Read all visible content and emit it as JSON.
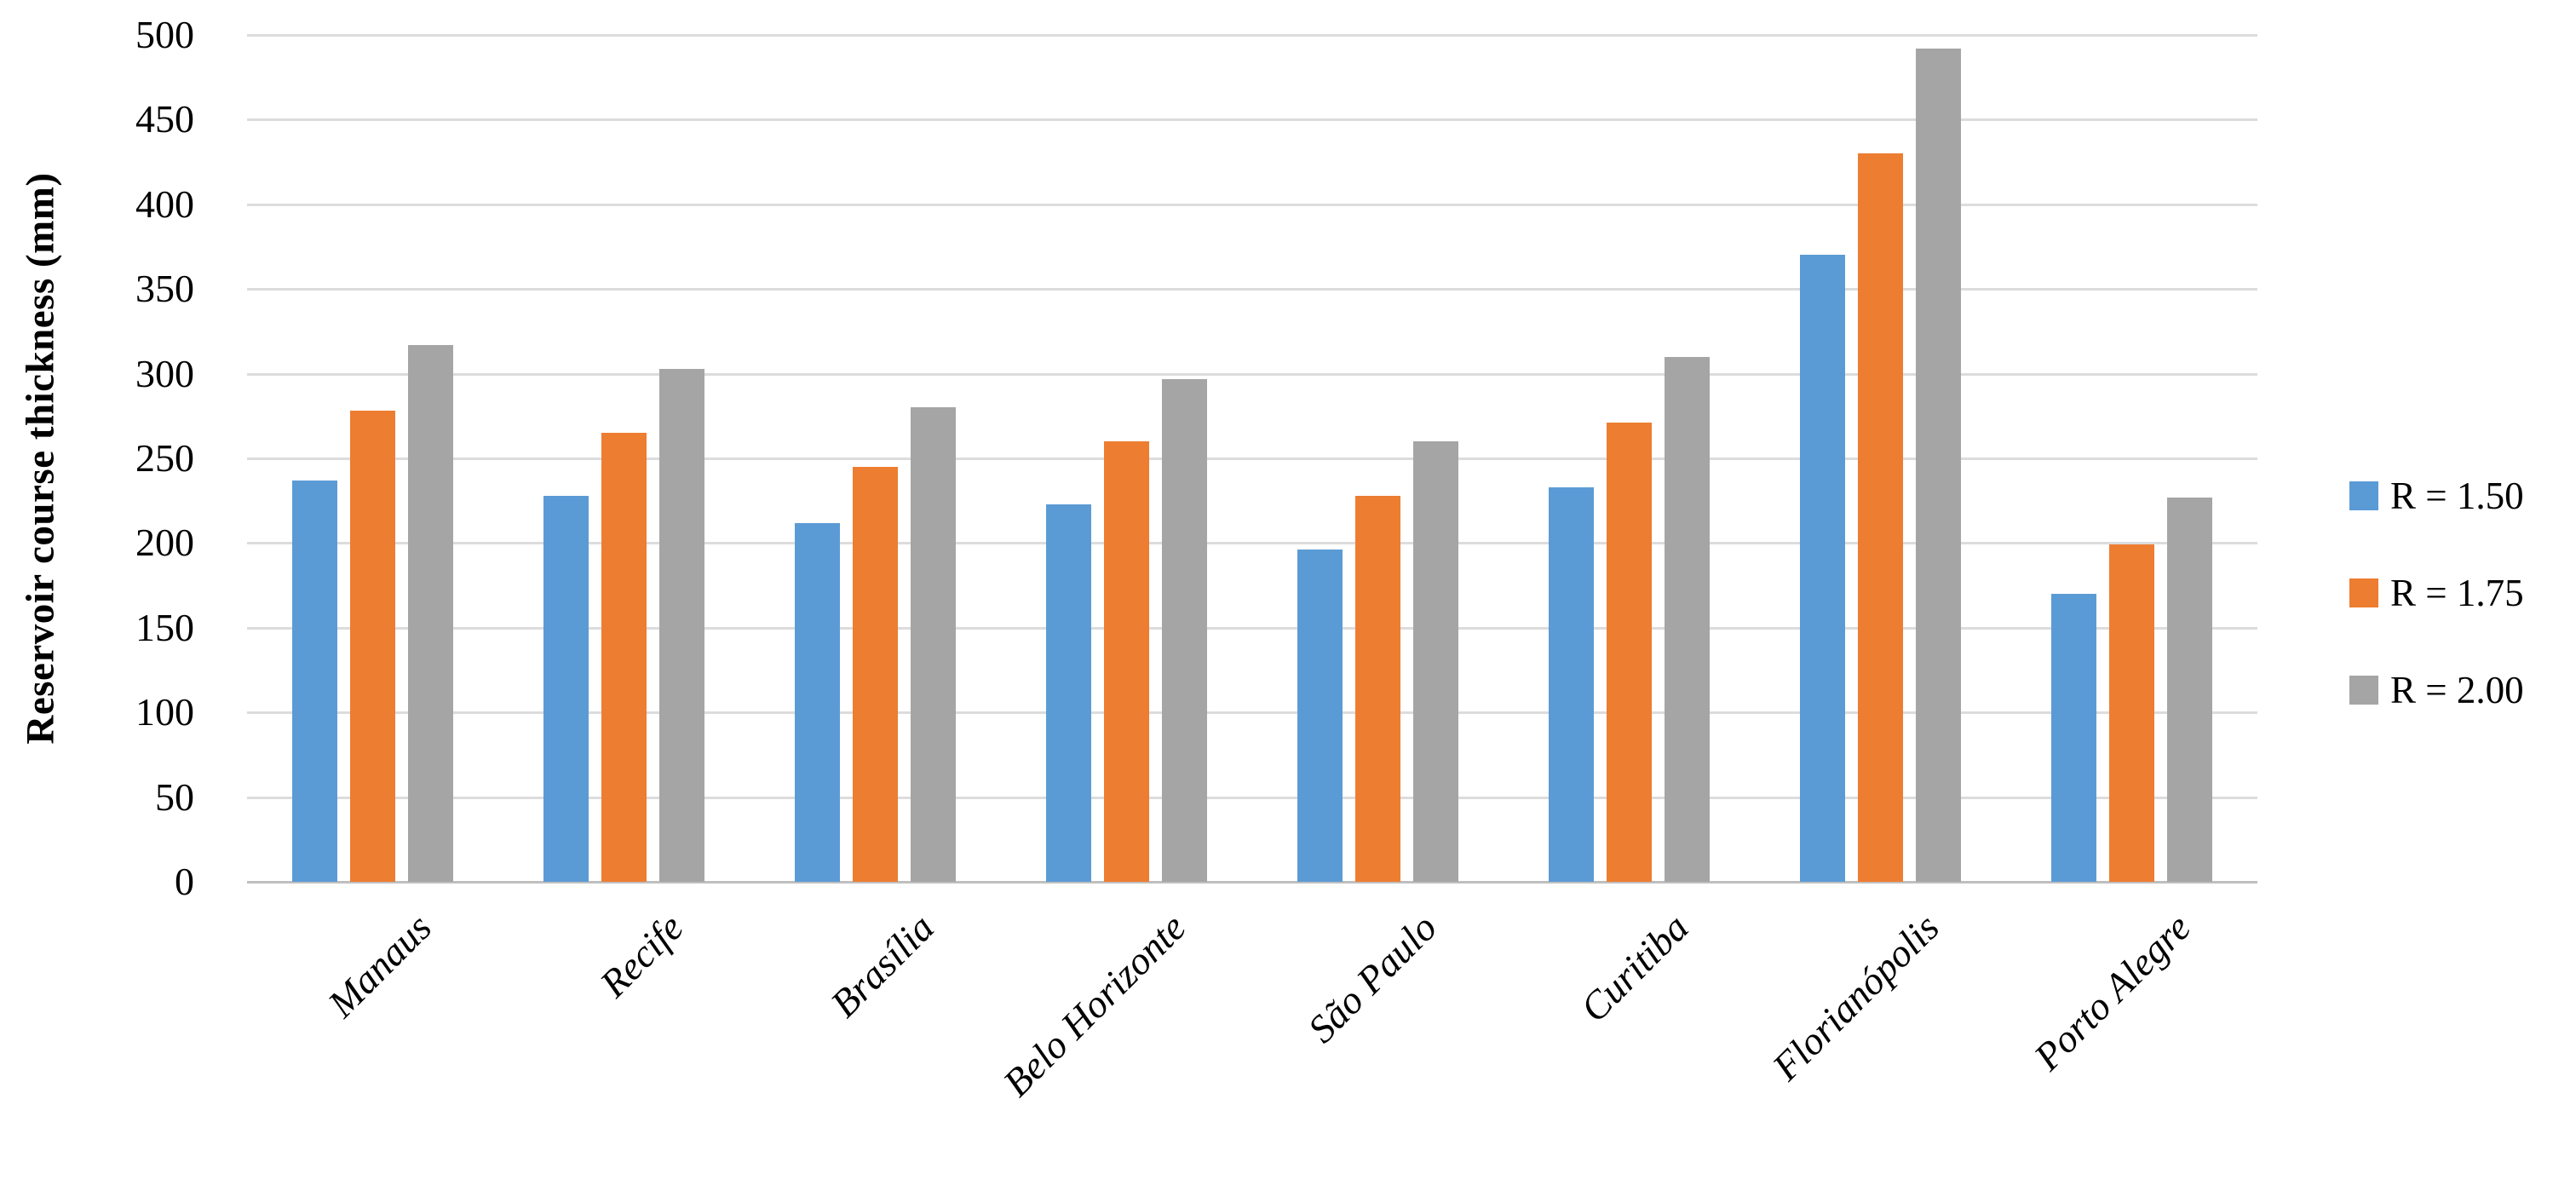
{
  "figure": {
    "background": "#ffffff",
    "text_color": "#000000"
  },
  "chart_data": {
    "type": "bar",
    "title": "",
    "xlabel": "",
    "ylabel": "Reservoir course thickness (mm)",
    "ylim": [
      0,
      500
    ],
    "ytick_step": 50,
    "grid": true,
    "legend_position": "right",
    "categories": [
      "Manaus",
      "Recife",
      "Brasília",
      "Belo Horizonte",
      "São Paulo",
      "Curitiba",
      "Florianópolis",
      "Porto Alegre"
    ],
    "series": [
      {
        "name": "R = 1.50",
        "color": "#5B9BD5",
        "values": [
          237,
          228,
          212,
          223,
          196,
          233,
          370,
          170
        ]
      },
      {
        "name": "R = 1.75",
        "color": "#ED7D31",
        "values": [
          278,
          265,
          245,
          260,
          228,
          271,
          430,
          199
        ]
      },
      {
        "name": "R = 2.00",
        "color": "#A5A5A5",
        "values": [
          317,
          303,
          280,
          297,
          260,
          310,
          492,
          227
        ]
      }
    ],
    "colors": {
      "gridline": "#DCDCDC",
      "axis_line": "#BFBFBF"
    }
  }
}
